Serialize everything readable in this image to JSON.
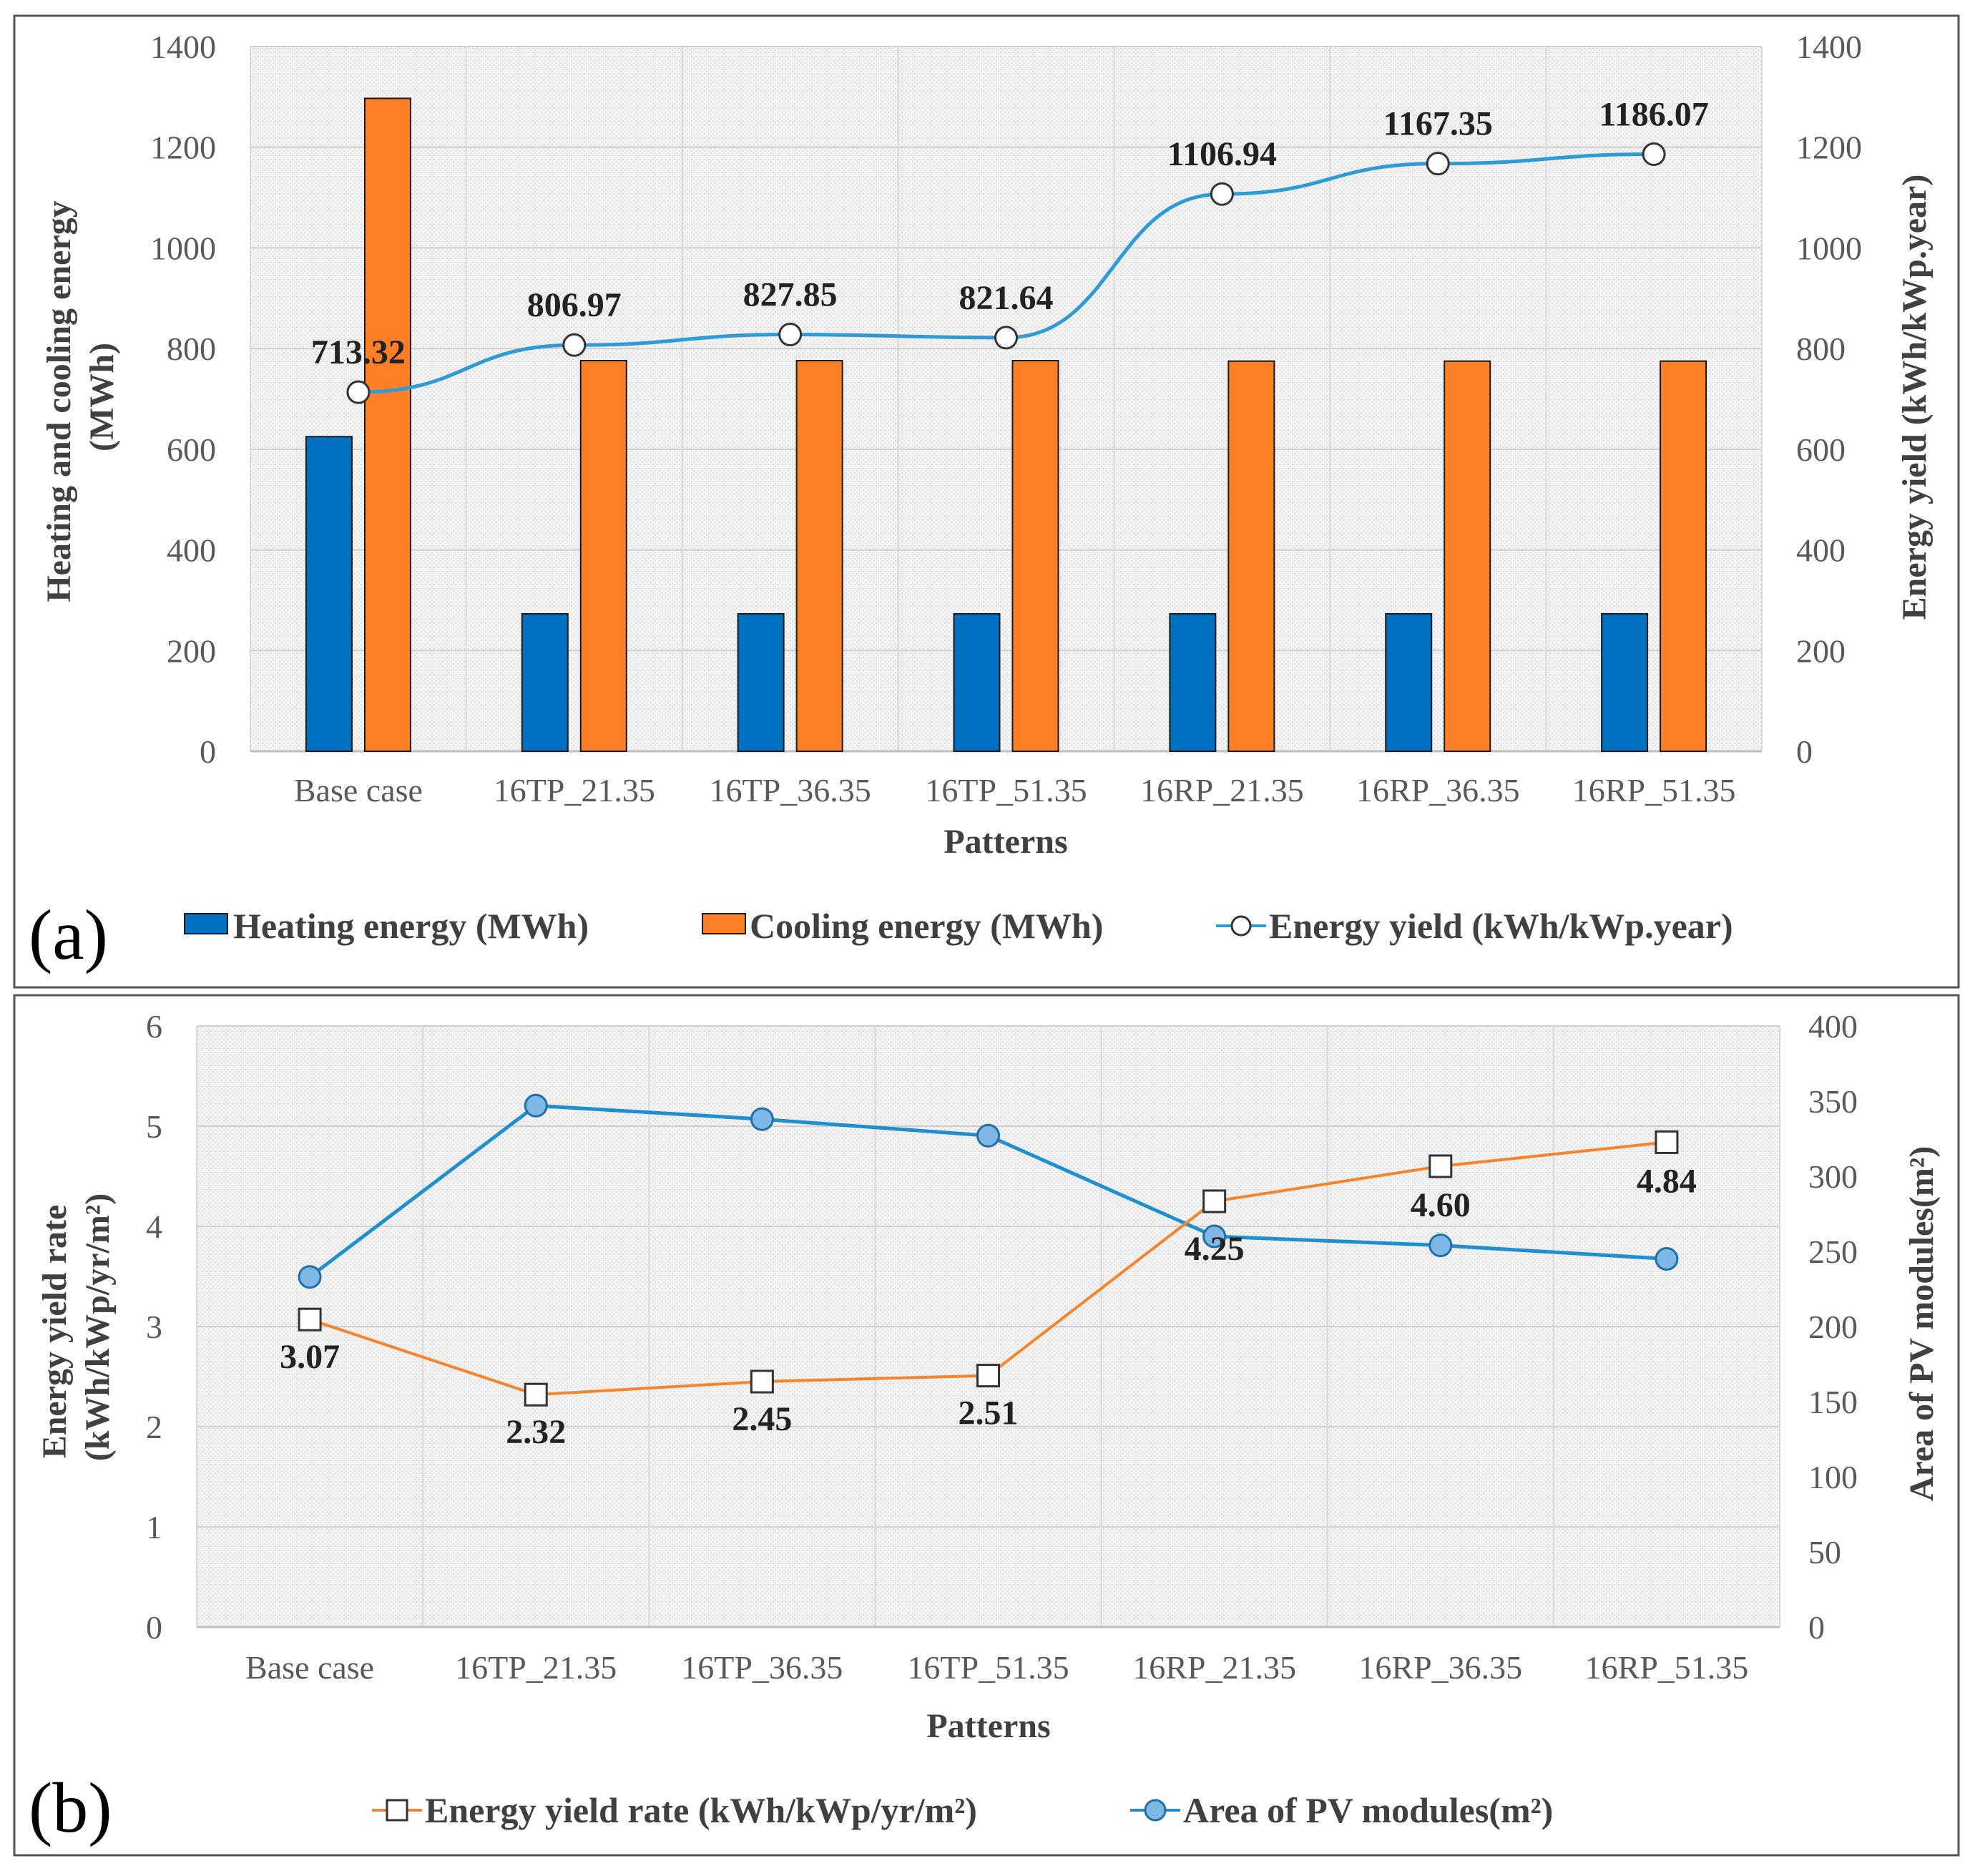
{
  "chart_data": [
    {
      "panel": "(a)",
      "type": "bar",
      "categories": [
        "Base case",
        "16TP_21.35",
        "16TP_36.35",
        "16TP_51.35",
        "16RP_21.35",
        "16RP_36.35",
        "16RP_51.35"
      ],
      "xlabel": "Patterns",
      "ylabel": "Heating and cooling energy (MWh)",
      "ylabel_lines": [
        "Heating and cooling energy",
        "(MWh)"
      ],
      "y2label": "Energy yield (kWh/kWp.year)",
      "ylim": [
        0,
        1400
      ],
      "y2lim": [
        0,
        1400
      ],
      "yticks": [
        "0",
        "200",
        "400",
        "600",
        "800",
        "1000",
        "1200",
        "1400"
      ],
      "y2ticks": [
        "0",
        "200",
        "400",
        "600",
        "800",
        "1000",
        "1200",
        "1400"
      ],
      "grid": true,
      "series": [
        {
          "name": "Heating energy (MWh)",
          "kind": "bar",
          "axis": "left",
          "color": "#0070C0",
          "values": [
            625,
            273,
            273,
            273,
            273,
            273,
            273
          ]
        },
        {
          "name": "Cooling energy (MWh)",
          "kind": "bar",
          "axis": "left",
          "color": "#FF7F27",
          "values": [
            1297,
            776,
            776,
            776,
            775,
            775,
            775
          ]
        },
        {
          "name": "Energy yield (kWh/kWp.year)",
          "kind": "line",
          "axis": "right",
          "marker": "circle-open",
          "color": "#2E9BD6",
          "values": [
            713.32,
            806.97,
            827.85,
            821.64,
            1106.94,
            1167.35,
            1186.07
          ],
          "labels": [
            "713.32",
            "806.97",
            "827.85",
            "821.64",
            "1106.94",
            "1167.35",
            "1186.07"
          ]
        }
      ],
      "legend": "bottom"
    },
    {
      "panel": "(b)",
      "type": "line",
      "categories": [
        "Base case",
        "16TP_21.35",
        "16TP_36.35",
        "16TP_51.35",
        "16RP_21.35",
        "16RP_36.35",
        "16RP_51.35"
      ],
      "xlabel": "Patterns",
      "ylabel": "Energy yield rate (kWh/kWp/yr/m²)",
      "ylabel_lines": [
        "Energy yield rate",
        "(kWh/kWp/yr/m²)"
      ],
      "y2label": "Area of PV modules(m²)",
      "ylim": [
        0,
        6
      ],
      "y2lim": [
        0,
        400
      ],
      "yticks": [
        "0",
        "1",
        "2",
        "3",
        "4",
        "5",
        "6"
      ],
      "y2ticks": [
        "0",
        "50",
        "100",
        "150",
        "200",
        "250",
        "300",
        "350",
        "400"
      ],
      "grid": true,
      "series": [
        {
          "name": "Energy yield rate (kWh/kWp/yr/m²)",
          "axis": "left",
          "marker": "square-open",
          "color": "#F5852D",
          "values": [
            3.07,
            2.32,
            2.45,
            2.51,
            4.25,
            4.6,
            4.84
          ],
          "labels": [
            "3.07",
            "2.32",
            "2.45",
            "2.51",
            "4.25",
            "4.60",
            "4.84"
          ]
        },
        {
          "name": "Area of PV modules(m²)",
          "axis": "right",
          "marker": "circle-filled",
          "color": "#1F8FD0",
          "fill": "#7FB8E4",
          "values": [
            233,
            347,
            338,
            327,
            260,
            254,
            245
          ]
        }
      ],
      "legend": "bottom"
    }
  ]
}
